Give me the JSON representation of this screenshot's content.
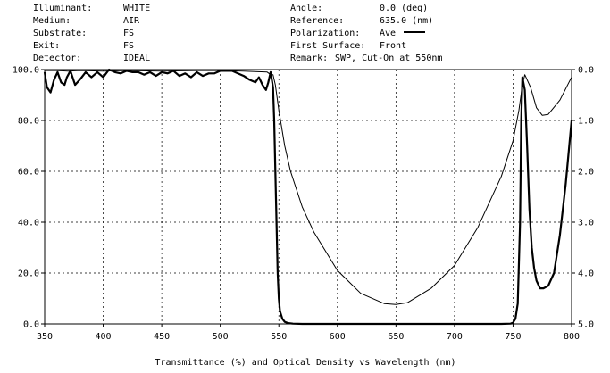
{
  "header": {
    "left": [
      {
        "label": "Illuminant:",
        "value": "WHITE"
      },
      {
        "label": "Medium:",
        "value": "AIR"
      },
      {
        "label": "Substrate:",
        "value": "FS"
      },
      {
        "label": "Exit:",
        "value": "FS"
      },
      {
        "label": "Detector:",
        "value": "IDEAL"
      }
    ],
    "right": [
      {
        "label": "Angle:",
        "value": "0.0 (deg)"
      },
      {
        "label": "Reference:",
        "value": "635.0 (nm)"
      },
      {
        "label": "Polarization:",
        "value": "Ave"
      },
      {
        "label": "First Surface:",
        "value": "Front"
      },
      {
        "label": "Remark:",
        "value": "SWP, Cut-On at 550nm"
      }
    ]
  },
  "chart_data": {
    "type": "line",
    "title": "",
    "xlabel": "Transmittance (%) and Optical Density  vs  Wavelength (nm)",
    "ylabel": "",
    "xlim": [
      350,
      800
    ],
    "ylim": [
      0,
      100
    ],
    "y2lim": [
      5.0,
      0.0
    ],
    "x_ticks": [
      "350",
      "400",
      "450",
      "500",
      "550",
      "600",
      "650",
      "700",
      "750",
      "800"
    ],
    "y_ticks": [
      "0.0",
      "20.0",
      "40.0",
      "60.0",
      "80.0",
      "100.0"
    ],
    "y2_ticks": [
      "0.0",
      "1.0",
      "2.0",
      "3.0",
      "4.0",
      "5.0"
    ],
    "grid": true,
    "series": [
      {
        "axis": "y2",
        "line_width": "thin",
        "x": [
          350,
          360,
          370,
          380,
          400,
          420,
          450,
          480,
          500,
          520,
          530,
          540,
          543,
          545,
          547,
          550,
          555,
          560,
          570,
          580,
          600,
          620,
          640,
          650,
          660,
          680,
          700,
          720,
          740,
          750,
          755,
          758,
          760,
          765,
          770,
          775,
          780,
          790,
          800
        ],
        "values": [
          0.02,
          0.02,
          0.03,
          0.02,
          0.03,
          0.02,
          0.03,
          0.02,
          0.02,
          0.03,
          0.04,
          0.05,
          0.1,
          0.1,
          0.3,
          0.8,
          1.5,
          2.0,
          2.7,
          3.2,
          3.95,
          4.4,
          4.6,
          4.62,
          4.58,
          4.3,
          3.85,
          3.1,
          2.1,
          1.4,
          0.8,
          0.3,
          0.1,
          0.35,
          0.75,
          0.9,
          0.88,
          0.6,
          0.15
        ]
      },
      {
        "axis": "y",
        "line_width": "thick",
        "x": [
          350,
          352,
          355,
          358,
          361,
          364,
          367,
          369,
          372,
          376,
          380,
          385,
          390,
          395,
          400,
          405,
          410,
          415,
          420,
          425,
          430,
          435,
          440,
          445,
          450,
          455,
          460,
          465,
          470,
          475,
          480,
          485,
          490,
          495,
          500,
          505,
          510,
          515,
          520,
          525,
          530,
          533,
          536,
          539,
          541,
          543,
          545,
          546,
          547,
          548,
          549,
          550,
          551,
          553,
          555,
          558,
          562,
          570,
          600,
          650,
          700,
          740,
          748,
          750,
          752,
          754,
          756,
          757,
          758,
          760,
          762,
          764,
          766,
          768,
          770,
          773,
          776,
          780,
          785,
          790,
          795,
          800
        ],
        "values": [
          99,
          93,
          91,
          96,
          99,
          95,
          94,
          97,
          99.5,
          94,
          96,
          99,
          97,
          99,
          97,
          100,
          99,
          98.5,
          99.5,
          99,
          99,
          98,
          99,
          97.5,
          99,
          98.5,
          99.5,
          97.5,
          98.5,
          97,
          99,
          97.5,
          98.5,
          98.5,
          99.5,
          99.5,
          99.5,
          98.5,
          97.5,
          96,
          95,
          97,
          94,
          92,
          95,
          99,
          93,
          80,
          60,
          40,
          20,
          10,
          5,
          2,
          0.8,
          0.3,
          0.1,
          0,
          0,
          0,
          0,
          0,
          0.1,
          0.5,
          2,
          8,
          40,
          80,
          97,
          92,
          70,
          45,
          30,
          22,
          17,
          14,
          14,
          15,
          20,
          35,
          55,
          80
        ]
      }
    ]
  }
}
